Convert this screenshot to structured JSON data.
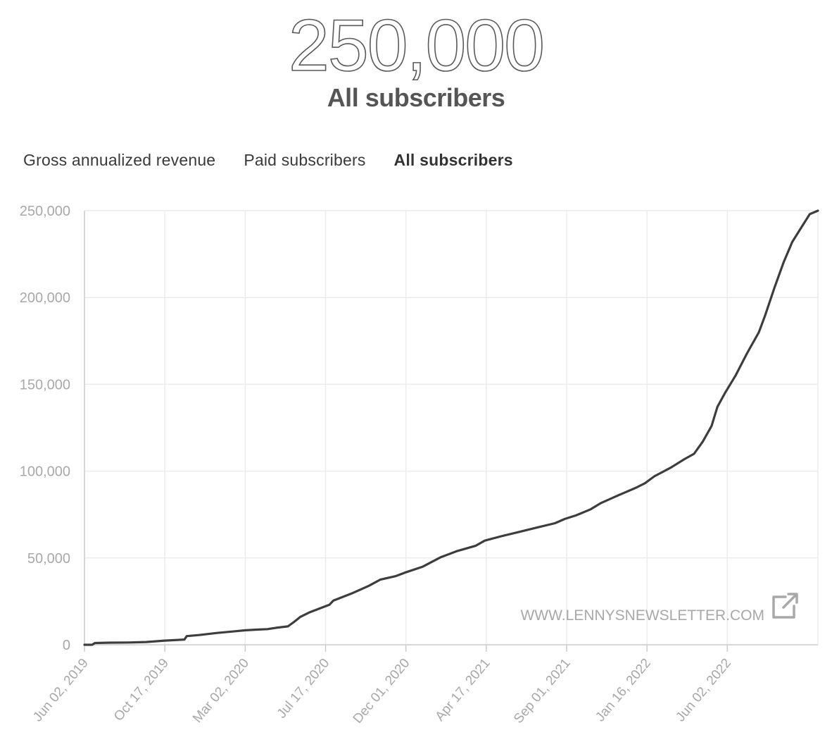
{
  "headline": {
    "value": "250,000",
    "label": "All subscribers"
  },
  "tabs": [
    {
      "label": "Gross annualized revenue",
      "active": false
    },
    {
      "label": "Paid subscribers",
      "active": false
    },
    {
      "label": "All subscribers",
      "active": true
    }
  ],
  "colors": {
    "line": "#3d3d3d",
    "grid": "#ececec",
    "axis": "#cccccc",
    "tick_text": "#a8a8a8"
  },
  "watermark": {
    "text": "WWW.LENNYSNEWSLETTER.COM",
    "icon": "external-link-icon"
  },
  "chart_data": {
    "type": "line",
    "x_tick_labels": [
      "Jun 02, 2019",
      "Oct 17, 2019",
      "Mar 02, 2020",
      "Jul 17, 2020",
      "Dec 01, 2020",
      "Apr 17, 2021",
      "Sep 01, 2021",
      "Jan 16, 2022",
      "Jun 02, 2022"
    ],
    "y_ticks": [
      0,
      50000,
      100000,
      150000,
      200000,
      250000
    ],
    "y_tick_labels": [
      "0",
      "50,000",
      "100,000",
      "150,000",
      "200,000",
      "250,000"
    ],
    "ylim": [
      0,
      250000
    ],
    "xlim": [
      "2019-06-02",
      "2022-11-08"
    ],
    "grid": true,
    "series": [
      {
        "points": [
          [
            "2019-06-02",
            0
          ],
          [
            "2019-06-15",
            0
          ],
          [
            "2019-06-20",
            1000
          ],
          [
            "2019-07-15",
            1200
          ],
          [
            "2019-08-15",
            1300
          ],
          [
            "2019-09-15",
            1600
          ],
          [
            "2019-10-17",
            2400
          ],
          [
            "2019-11-20",
            3000
          ],
          [
            "2019-11-24",
            5000
          ],
          [
            "2019-12-15",
            5600
          ],
          [
            "2020-01-15",
            6800
          ],
          [
            "2020-02-15",
            7800
          ],
          [
            "2020-03-02",
            8300
          ],
          [
            "2020-03-20",
            8700
          ],
          [
            "2020-04-10",
            9000
          ],
          [
            "2020-04-25",
            9800
          ],
          [
            "2020-05-15",
            10600
          ],
          [
            "2020-05-25",
            13000
          ],
          [
            "2020-06-05",
            16000
          ],
          [
            "2020-06-20",
            18500
          ],
          [
            "2020-07-17",
            22000
          ],
          [
            "2020-07-25",
            23000
          ],
          [
            "2020-08-01",
            25500
          ],
          [
            "2020-09-01",
            29500
          ],
          [
            "2020-10-01",
            34000
          ],
          [
            "2020-10-20",
            37500
          ],
          [
            "2020-11-15",
            39500
          ],
          [
            "2020-12-01",
            41500
          ],
          [
            "2021-01-01",
            45000
          ],
          [
            "2021-02-01",
            50500
          ],
          [
            "2021-03-01",
            54000
          ],
          [
            "2021-04-01",
            57000
          ],
          [
            "2021-04-17",
            60000
          ],
          [
            "2021-05-15",
            62500
          ],
          [
            "2021-06-15",
            65000
          ],
          [
            "2021-07-15",
            67500
          ],
          [
            "2021-08-15",
            70000
          ],
          [
            "2021-09-01",
            72500
          ],
          [
            "2021-09-20",
            74500
          ],
          [
            "2021-10-15",
            78000
          ],
          [
            "2021-11-01",
            81500
          ],
          [
            "2021-12-01",
            86000
          ],
          [
            "2022-01-01",
            90500
          ],
          [
            "2022-01-16",
            93000
          ],
          [
            "2022-02-01",
            97000
          ],
          [
            "2022-03-01",
            102000
          ],
          [
            "2022-03-25",
            107000
          ],
          [
            "2022-04-10",
            110000
          ],
          [
            "2022-04-25",
            117000
          ],
          [
            "2022-05-10",
            126000
          ],
          [
            "2022-05-20",
            137000
          ],
          [
            "2022-06-02",
            145000
          ],
          [
            "2022-06-20",
            155000
          ],
          [
            "2022-07-10",
            168000
          ],
          [
            "2022-07-30",
            180000
          ],
          [
            "2022-08-10",
            190000
          ],
          [
            "2022-08-25",
            205000
          ],
          [
            "2022-09-10",
            220000
          ],
          [
            "2022-09-25",
            232000
          ],
          [
            "2022-10-10",
            240000
          ],
          [
            "2022-10-25",
            248000
          ],
          [
            "2022-11-08",
            250000
          ]
        ]
      }
    ]
  }
}
